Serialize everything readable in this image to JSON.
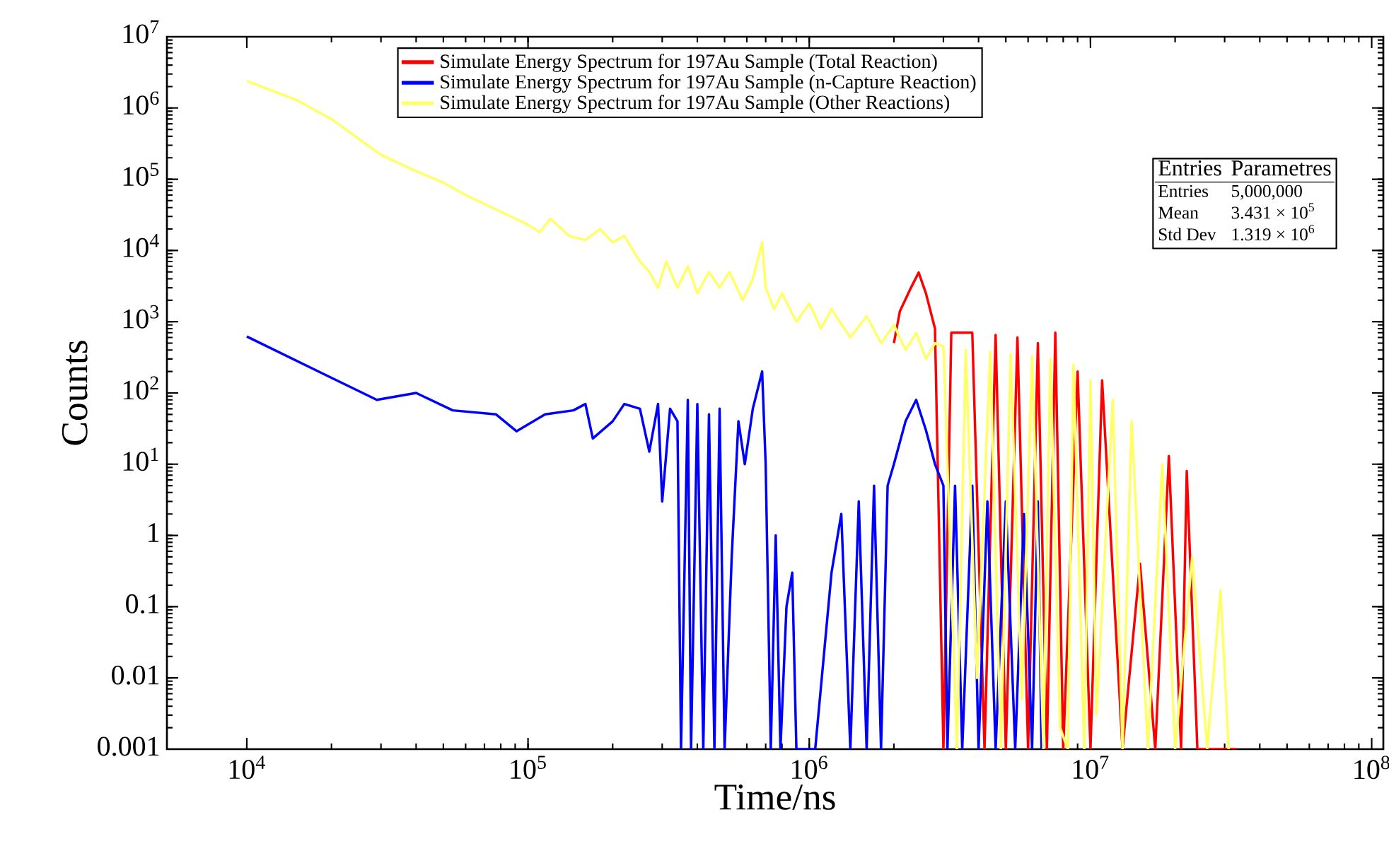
{
  "chart_data": {
    "type": "line",
    "xlabel": "Time/ns",
    "ylabel": "Counts",
    "log": "xy",
    "legend": "top",
    "marker": "none",
    "line_style": "solid",
    "xlim": [
      5200,
      110000000
    ],
    "ylim": [
      0.001,
      10000000
    ],
    "xticks": [
      {
        "value": 10000,
        "label": "10$^{4}$"
      },
      {
        "value": 100000,
        "label": "10$^{5}$"
      },
      {
        "value": 1000000,
        "label": "10$^{6}$"
      },
      {
        "value": 10000000,
        "label": "10$^{7}$"
      },
      {
        "value": 100000000,
        "label": "10$^{8}$"
      }
    ],
    "yticks": [
      0.001,
      0.01,
      0.1,
      1,
      {
        "value": 10,
        "label": "10$^{1}$"
      },
      {
        "value": 100,
        "label": "10$^{2}$"
      },
      {
        "value": 1000,
        "label": "10$^{3}$"
      },
      {
        "value": 10000,
        "label": "10$^{4}$"
      },
      {
        "value": 100000,
        "label": "10$^{5}$"
      },
      {
        "value": 1000000,
        "label": "10$^{6}$"
      },
      {
        "value": 10000000,
        "label": "10$^{7}$"
      }
    ],
    "annotations": [
      "Entries",
      "Parametres",
      "Entries",
      "5,000,000",
      "Mean",
      "3.431 × 10$^{5}$",
      "Std Dev",
      "1.319 × 10$^{6}$"
    ],
    "series": [
      {
        "name": "Simulate Energy Spectrum for 197Au Sample (Total Reaction)",
        "color": "#ff0000",
        "x": [
          2000000,
          2100000,
          2300000,
          2450000,
          2600000,
          2800000,
          3000000,
          3200000,
          3500000,
          3800000,
          4200000,
          4600000,
          5000000,
          5500000,
          6000000,
          6500000,
          7000000,
          7500000,
          8000000,
          9000000,
          10000000,
          11000000,
          13000000,
          15000000,
          17000000,
          19000000,
          21000000,
          22000000,
          24000000,
          33000000
        ],
        "values": [
          500,
          1400,
          3000,
          4900,
          2500,
          800,
          0.001,
          700,
          null,
          700,
          0.001,
          650,
          0.001,
          600,
          0.001,
          500,
          0.001,
          700,
          0.001,
          200,
          0.001,
          150,
          0.001,
          0.4,
          0.001,
          13,
          0.001,
          8,
          0.001,
          0.001
        ]
      },
      {
        "name": "Simulate Energy Spectrum for 197Au Sample (n-Capture Reaction)",
        "color": "#0000ff",
        "x": [
          10000,
          19000,
          29000,
          40000,
          54000,
          77000,
          91000,
          115000,
          145000,
          160000,
          170000,
          200000,
          220000,
          250000,
          270000,
          290000,
          300000,
          320000,
          340000,
          350000,
          370000,
          380000,
          400000,
          420000,
          440000,
          460000,
          480000,
          500000,
          530000,
          560000,
          590000,
          630000,
          680000,
          700000,
          730000,
          760000,
          790000,
          830000,
          870000,
          900000,
          1050000,
          1200000,
          1300000,
          1400000,
          1500000,
          1600000,
          1700000,
          1800000,
          1900000,
          2000000,
          2200000,
          2400000,
          2600000,
          2800000,
          3000000,
          3100000,
          3300000,
          3500000,
          3800000,
          4000000,
          4300000,
          4600000,
          5000000,
          5400000,
          5800000,
          6200000,
          6500000,
          6700000
        ],
        "values": [
          620,
          180,
          80,
          100,
          57,
          50,
          29,
          50,
          57,
          70,
          23,
          40,
          70,
          60,
          15,
          70,
          3,
          60,
          40,
          0.001,
          80,
          0.001,
          70,
          0.001,
          50,
          0.001,
          60,
          0.001,
          0.5,
          40,
          10,
          60,
          200,
          10,
          0.001,
          1,
          0.001,
          0.1,
          0.3,
          0.001,
          0.001,
          0.3,
          2,
          0.001,
          3,
          0.001,
          5,
          0.001,
          5,
          10,
          40,
          80,
          30,
          10,
          5,
          0.001,
          5,
          0.001,
          5,
          0.001,
          3,
          0.001,
          3,
          0.001,
          2,
          0.001,
          3,
          0.001
        ]
      },
      {
        "name": "Simulate Energy Spectrum for 197Au Sample (Other Reactions)",
        "color": "#ffff66",
        "x": [
          10000,
          15000,
          20000,
          30000,
          40000,
          50000,
          60000,
          80000,
          100000,
          110000,
          120000,
          140000,
          160000,
          180000,
          200000,
          220000,
          250000,
          270000,
          290000,
          310000,
          340000,
          370000,
          400000,
          440000,
          480000,
          520000,
          580000,
          630000,
          680000,
          700000,
          750000,
          800000,
          900000,
          1000000,
          1100000,
          1200000,
          1400000,
          1600000,
          1800000,
          2000000,
          2200000,
          2400000,
          2600000,
          2800000,
          3000000,
          3350000,
          3600000,
          3950000,
          4400000,
          4800000,
          5200000,
          5700000,
          6200000,
          6800000,
          7200000,
          7800000,
          8300000,
          8700000,
          9500000,
          10000000,
          10500000,
          12000000,
          13000000,
          14000000,
          16000000,
          18000000,
          20000000,
          23000000,
          26000000,
          29000000,
          31000000
        ],
        "values": [
          2400000,
          1300000,
          700000,
          220000,
          130000,
          90000,
          60000,
          35000,
          23000,
          18000,
          28000,
          16000,
          14000,
          20000,
          13000,
          16000,
          7000,
          5000,
          3000,
          7000,
          3000,
          6000,
          2500,
          5000,
          3000,
          5000,
          2000,
          4000,
          13000,
          3000,
          1500,
          2500,
          1000,
          1800,
          800,
          1500,
          600,
          1200,
          500,
          900,
          400,
          700,
          300,
          500,
          450,
          0.001,
          400,
          0.01,
          380,
          0.001,
          350,
          0.005,
          330,
          0.001,
          300,
          0.002,
          0.001,
          250,
          0.001,
          150,
          0.003,
          80,
          0.001,
          40,
          0.001,
          10,
          0.001,
          0.5,
          0.001,
          0.17,
          0.001
        ]
      }
    ]
  }
}
